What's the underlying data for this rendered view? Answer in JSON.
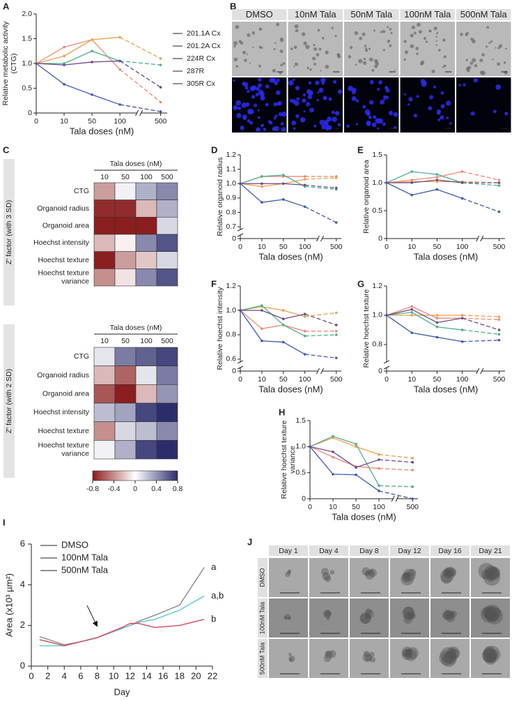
{
  "chart_data": [
    {
      "type": "dose-line",
      "panel": "A",
      "categories": [
        "0",
        "10",
        "50",
        "100",
        "500"
      ],
      "x_label": "Tala doses (nM)",
      "y_label": "Relative metabolic activity (CTG)",
      "ylim": [
        0,
        2
      ],
      "yticks": [
        0,
        0.5,
        {
          "value": 1,
          "label": "1.0"
        },
        1.5,
        {
          "value": 2,
          "label": "2.0"
        }
      ],
      "legend": "right",
      "series": [
        {
          "name": "201.1A Cx",
          "color": "#f08878",
          "values": [
            1.0,
            1.33,
            1.48,
            0.88,
            0.22
          ]
        },
        {
          "name": "201.2A Cx",
          "color": "#f0a04a",
          "values": [
            1.0,
            1.15,
            1.48,
            1.53,
            1.1
          ]
        },
        {
          "name": "224R Cx",
          "color": "#3d5ab0",
          "values": [
            1.0,
            0.58,
            0.37,
            0.17,
            0.03
          ]
        },
        {
          "name": "287R",
          "color": "#4fb08a",
          "values": [
            1.0,
            1.0,
            1.25,
            1.05,
            0.97
          ]
        },
        {
          "name": "305R Cx",
          "color": "#6b4a8c",
          "values": [
            1.0,
            0.97,
            1.03,
            1.05,
            0.52
          ]
        }
      ]
    },
    {
      "type": "heatmap",
      "panel": "C",
      "x_label": "Tala doses (nM)",
      "z_label": "Z' factor (with 3 SD)",
      "categories": [
        "10",
        "50",
        "100",
        "500"
      ],
      "rows": [
        "CTG",
        "Organoid radius",
        "Organoid area",
        "Hoechst intensity",
        "Hoechst texture",
        "Hoechst texture variance"
      ],
      "zlim": [
        -0.8,
        0.8
      ],
      "colors": [
        "#8b1e1e",
        "#ffffff",
        "#2b2d6b"
      ],
      "values": [
        [
          -0.35,
          0.05,
          0.3,
          0.45
        ],
        [
          -0.75,
          -0.75,
          -0.25,
          0.3
        ],
        [
          -0.8,
          -0.8,
          -0.8,
          0.15
        ],
        [
          -0.25,
          -0.05,
          0.45,
          0.65
        ],
        [
          -0.8,
          -0.35,
          -0.2,
          0.15
        ],
        [
          -0.4,
          -0.1,
          0.45,
          0.65
        ]
      ]
    },
    {
      "type": "heatmap",
      "x_label": "Tala doses (nM)",
      "z_label": "Z' factor (with 2 SD)",
      "categories": [
        "10",
        "50",
        "100",
        "500"
      ],
      "rows": [
        "CTG",
        "Organoid radius",
        "Organoid area",
        "Hoechst intensity",
        "Hoechst texture",
        "Hoechst texture variance"
      ],
      "zlim": [
        -0.8,
        0.8
      ],
      "colors": [
        "#8b1e1e",
        "#ffffff",
        "#2b2d6b"
      ],
      "colorbar_ticks": [
        -0.8,
        -0.4,
        0,
        0.4,
        0.8
      ],
      "values": [
        [
          0.1,
          0.5,
          0.6,
          0.7
        ],
        [
          -0.25,
          -0.55,
          0.1,
          0.5
        ],
        [
          -0.6,
          -0.8,
          -0.25,
          0.4
        ],
        [
          0.25,
          0.35,
          0.7,
          0.8
        ],
        [
          -0.4,
          0.15,
          0.25,
          0.45
        ],
        [
          0.05,
          0.3,
          0.7,
          0.8
        ]
      ]
    },
    {
      "type": "dose-line",
      "panel": "D",
      "categories": [
        "0",
        "10",
        "50",
        "100",
        "500"
      ],
      "x_label": "Tala doses (nM)",
      "y_label": "Relative organoid radius",
      "ylim": [
        0,
        1.2
      ],
      "ybreak": [
        0,
        0.7
      ],
      "yticks": [
        0,
        0.7,
        0.8,
        0.9,
        {
          "value": 1,
          "label": "1.0"
        },
        1.1,
        1.2
      ],
      "series": [
        {
          "color": "#f08878",
          "values": [
            1.0,
            1.05,
            1.05,
            1.05,
            1.05
          ]
        },
        {
          "color": "#f0a04a",
          "values": [
            1.0,
            0.98,
            1.0,
            1.03,
            1.04
          ]
        },
        {
          "color": "#3d5ab0",
          "values": [
            1.0,
            0.87,
            0.89,
            0.84,
            0.73
          ]
        },
        {
          "color": "#4fb08a",
          "values": [
            1.0,
            1.05,
            1.06,
            0.98,
            0.96
          ]
        },
        {
          "color": "#6b4a8c",
          "values": [
            1.0,
            1.0,
            1.0,
            0.99,
            0.97
          ]
        }
      ]
    },
    {
      "type": "dose-line",
      "panel": "E",
      "categories": [
        "0",
        "10",
        "50",
        "100",
        "500"
      ],
      "x_label": "Tala doses (nM)",
      "y_label": "Relative organoid area",
      "ylim": [
        0,
        1.5
      ],
      "yticks": [
        0,
        0.5,
        {
          "value": 1,
          "label": "1.0"
        },
        1.5
      ],
      "series": [
        {
          "color": "#f08878",
          "values": [
            1.0,
            1.05,
            1.1,
            1.2,
            1.05
          ]
        },
        {
          "color": "#f0a04a",
          "values": [
            1.0,
            1.02,
            1.02,
            1.02,
            1.0
          ]
        },
        {
          "color": "#3d5ab0",
          "values": [
            1.0,
            0.78,
            0.88,
            0.72,
            0.48
          ]
        },
        {
          "color": "#4fb08a",
          "values": [
            1.0,
            1.2,
            1.15,
            1.0,
            0.95
          ]
        },
        {
          "color": "#6b4a8c",
          "values": [
            1.0,
            1.0,
            1.05,
            1.0,
            1.0
          ]
        }
      ]
    },
    {
      "type": "dose-line",
      "panel": "F",
      "categories": [
        "0",
        "10",
        "50",
        "100",
        "500"
      ],
      "x_label": "Tala doses (nM)",
      "y_label": "Relative hoechst intensity",
      "ylim": [
        0,
        1.2
      ],
      "ybreak": [
        0,
        0.6
      ],
      "yticks": [
        0,
        0.6,
        0.8,
        {
          "value": 1,
          "label": "1.0"
        },
        1.2
      ],
      "series": [
        {
          "color": "#f08878",
          "values": [
            1.0,
            0.85,
            0.88,
            0.83,
            0.83
          ]
        },
        {
          "color": "#f0a04a",
          "values": [
            1.0,
            1.03,
            1.0,
            0.95,
            0.98
          ]
        },
        {
          "color": "#3d5ab0",
          "values": [
            1.0,
            0.75,
            0.74,
            0.64,
            0.61
          ]
        },
        {
          "color": "#4fb08a",
          "values": [
            1.0,
            1.04,
            0.88,
            0.79,
            0.8
          ]
        },
        {
          "color": "#6b4a8c",
          "values": [
            1.0,
            1.0,
            0.93,
            0.97,
            0.88
          ]
        }
      ]
    },
    {
      "type": "dose-line",
      "panel": "G",
      "categories": [
        "0",
        "10",
        "50",
        "100",
        "500"
      ],
      "x_label": "Tala doses (nM)",
      "y_label": "Relative hoechst texture",
      "ylim": [
        0,
        1.2
      ],
      "ybreak": [
        0,
        0.7
      ],
      "yticks": [
        0,
        0.8,
        {
          "value": 1,
          "label": "1.0"
        },
        1.2
      ],
      "series": [
        {
          "color": "#f08878",
          "values": [
            1.0,
            1.06,
            0.98,
            0.98,
            0.97
          ]
        },
        {
          "color": "#f0a04a",
          "values": [
            1.0,
            1.0,
            1.0,
            1.0,
            0.99
          ]
        },
        {
          "color": "#3d5ab0",
          "values": [
            1.0,
            0.88,
            0.85,
            0.82,
            0.83
          ]
        },
        {
          "color": "#4fb08a",
          "values": [
            1.0,
            1.02,
            0.92,
            0.9,
            0.87
          ]
        },
        {
          "color": "#6b4a8c",
          "values": [
            1.0,
            1.04,
            0.95,
            0.98,
            0.9
          ]
        }
      ]
    },
    {
      "type": "dose-line",
      "panel": "H",
      "categories": [
        "0",
        "10",
        "50",
        "100",
        "500"
      ],
      "x_label": "Tala doses (nM)",
      "y_label": "Relative hoechst texture variance",
      "ylim": [
        0,
        1.5
      ],
      "yticks": [
        0,
        0.5,
        {
          "value": 1,
          "label": "1.0"
        },
        1.5
      ],
      "series": [
        {
          "color": "#f08878",
          "values": [
            1.0,
            0.8,
            0.62,
            0.58,
            0.55
          ]
        },
        {
          "color": "#f0a04a",
          "values": [
            1.0,
            1.17,
            1.0,
            0.85,
            0.78
          ]
        },
        {
          "color": "#3d5ab0",
          "values": [
            1.0,
            0.47,
            0.46,
            0.15,
            0.0
          ]
        },
        {
          "color": "#4fb08a",
          "values": [
            1.0,
            1.2,
            1.05,
            0.25,
            0.23
          ]
        },
        {
          "color": "#6b4a8c",
          "values": [
            1.0,
            0.9,
            0.6,
            0.75,
            0.7
          ]
        }
      ]
    },
    {
      "type": "line",
      "panel": "I",
      "x": [
        1,
        4,
        6,
        8,
        11,
        12,
        13,
        15,
        18,
        21
      ],
      "x_label": "Day",
      "y_label": "Area (x10³ µm²)",
      "xlim": [
        0,
        22
      ],
      "xticks": [
        0,
        2,
        4,
        6,
        8,
        10,
        12,
        14,
        16,
        18,
        20,
        22
      ],
      "ylim": [
        0,
        6
      ],
      "yticks": [
        0,
        2,
        4,
        6
      ],
      "legend": "upper left",
      "annotations": [
        "a",
        "a,b",
        "b"
      ],
      "series": [
        {
          "name": "DMSO",
          "color": "#8c8c8c",
          "values": [
            1.45,
            1.05,
            1.2,
            1.4,
            1.85,
            2.0,
            2.2,
            2.5,
            3.0,
            4.85
          ]
        },
        {
          "name": "100nM Tala",
          "color": "#5bc8dc",
          "values": [
            1.0,
            1.0,
            1.2,
            1.4,
            1.85,
            2.0,
            2.15,
            2.3,
            2.75,
            3.45
          ]
        },
        {
          "name": "500nM Tala",
          "color": "#d9475c",
          "values": [
            1.3,
            1.0,
            1.2,
            1.4,
            1.9,
            2.1,
            2.1,
            1.9,
            2.0,
            2.3
          ]
        }
      ]
    }
  ],
  "image_panels": [
    {
      "panel": "B",
      "columns": [
        "DMSO",
        "10nM Tala",
        "50nM Tala",
        "100nM Tala",
        "500nM Tala"
      ]
    },
    {
      "panel": "J",
      "columns": [
        "Day 1",
        "Day 4",
        "Day 8",
        "Day 12",
        "Day 16",
        "Day 21"
      ],
      "rows": [
        "DMSO",
        "100nM Tala",
        "500nM Tala"
      ]
    }
  ]
}
